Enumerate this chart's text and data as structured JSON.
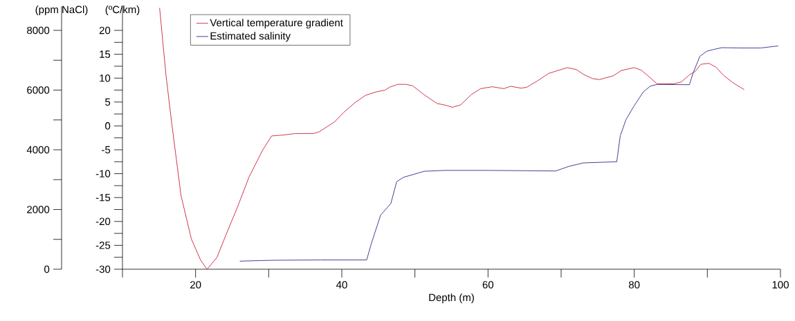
{
  "chart_data": {
    "type": "line",
    "xlabel": "Depth (m)",
    "ylabel": "(ºC/km)",
    "y2label": "(ppm NaCl)",
    "xlim": [
      10,
      100
    ],
    "xticks": [
      {
        "value": 10,
        "label": null
      },
      20,
      {
        "value": 30,
        "label": null
      },
      40,
      {
        "value": 50,
        "label": null
      },
      60,
      {
        "value": 70,
        "label": null
      },
      80,
      {
        "value": 90,
        "label": null
      },
      100
    ],
    "ylim": [
      -30,
      25
    ],
    "yticks": [
      -30,
      {
        "value": -27.5,
        "label": null
      },
      -25,
      {
        "value": -22.5,
        "label": null
      },
      -20,
      {
        "value": -17.5,
        "label": null
      },
      -15,
      {
        "value": -12.5,
        "label": null
      },
      -10,
      {
        "value": -7.5,
        "label": null
      },
      -5,
      {
        "value": -2.5,
        "label": null
      },
      0,
      {
        "value": 2.5,
        "label": null
      },
      5,
      {
        "value": 7.5,
        "label": null
      },
      10,
      {
        "value": 12.5,
        "label": null
      },
      15,
      {
        "value": 17.5,
        "label": null
      },
      20
    ],
    "y2lim": [
      0,
      8800
    ],
    "y2ticks": [
      0,
      {
        "value": 1000,
        "label": null
      },
      2000,
      {
        "value": 3000,
        "label": null
      },
      4000,
      {
        "value": 5000,
        "label": null
      },
      6000,
      {
        "value": 7000,
        "label": null
      },
      8000
    ],
    "legend": "top left",
    "marker": "none",
    "line_style": "solid",
    "series": [
      {
        "name": "Vertical temperature gradient",
        "color": "#cc1f3c",
        "x": [
          15.08,
          15.96,
          16.75,
          18.01,
          19.43,
          20.69,
          21.57,
          22.9,
          24.16,
          25.73,
          27.31,
          29.2,
          30.4,
          32.04,
          33.62,
          36.14,
          36.93,
          38.98,
          40.24,
          41.82,
          43.24,
          44.65,
          45.92,
          46.55,
          47.65,
          48.76,
          49.7,
          51.28,
          53.02,
          54.28,
          55.13,
          56.26,
          57.75,
          59.0,
          60.58,
          62.16,
          63.1,
          64.52,
          65.31,
          66.73,
          68.31,
          69.57,
          70.83,
          72.09,
          73.04,
          74.3,
          75.25,
          77.14,
          78.24,
          79.98,
          80.93,
          81.87,
          83.13,
          85.34,
          86.44,
          87.55,
          88.33,
          89.12,
          90.23,
          91.17,
          92.28,
          93.54,
          95.05
        ],
        "values": [
          24.7,
          10.5,
          0.4,
          -14.6,
          -23.7,
          -28.1,
          -30,
          -27.6,
          -22.8,
          -17.0,
          -10.7,
          -5.0,
          -2.1,
          -1.9,
          -1.6,
          -1.6,
          -1.2,
          0.8,
          2.8,
          4.9,
          6.4,
          7.1,
          7.5,
          8.1,
          8.7,
          8.7,
          8.4,
          6.5,
          4.7,
          4.3,
          3.9,
          4.4,
          6.6,
          7.8,
          8.2,
          7.8,
          8.3,
          7.9,
          8.1,
          9.4,
          11.0,
          11.6,
          12.2,
          11.8,
          10.8,
          9.9,
          9.7,
          10.5,
          11.6,
          12.2,
          11.7,
          10.5,
          8.8,
          8.8,
          9.2,
          10.7,
          11.4,
          12.9,
          13.1,
          12.3,
          10.5,
          9.0,
          7.6
        ]
      },
      {
        "name": "Estimated salinity",
        "color": "#302a8a",
        "axis": "y2",
        "x": [
          26.05,
          28.9,
          30.79,
          37.1,
          43.4,
          44.03,
          45.3,
          46.71,
          47.5,
          48.45,
          51.28,
          54.12,
          60.11,
          69.25,
          71.14,
          73.04,
          77.61,
          78.09,
          78.87,
          79.98,
          81.24,
          82.19,
          83.13,
          87.55,
          88.02,
          88.97,
          89.91,
          90.86,
          91.96,
          94.8,
          97.32,
          99.69
        ],
        "values": [
          270,
          290,
          300,
          310,
          310,
          850,
          1810,
          2200,
          2930,
          3080,
          3280,
          3310,
          3310,
          3290,
          3450,
          3560,
          3600,
          4470,
          5010,
          5470,
          5940,
          6130,
          6190,
          6180,
          6550,
          7130,
          7300,
          7360,
          7420,
          7410,
          7410,
          7480
        ]
      }
    ]
  }
}
